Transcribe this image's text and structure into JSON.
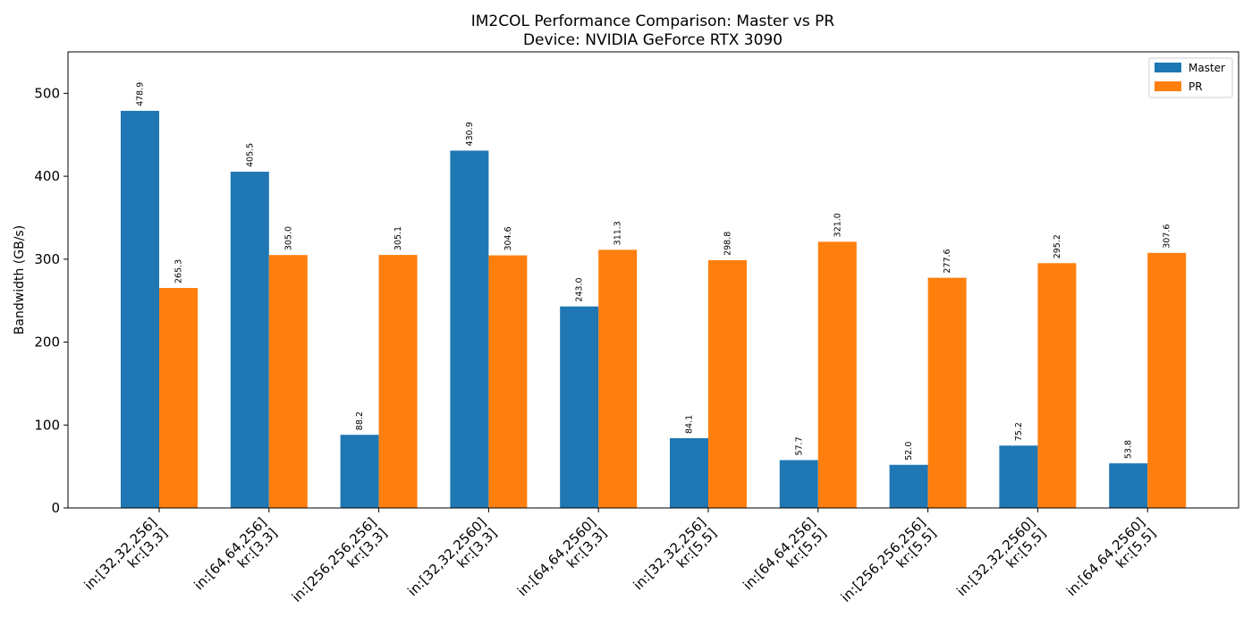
{
  "chart_data": {
    "type": "bar",
    "title": "IM2COL Performance Comparison: Master vs PR",
    "subtitle": "Device: NVIDIA GeForce RTX 3090",
    "xlabel": "",
    "ylabel": "Bandwidth (GB/s)",
    "ylim": [
      0,
      550
    ],
    "yticks": [
      0,
      100,
      200,
      300,
      400,
      500
    ],
    "grid": false,
    "legend_position": "top-right",
    "categories": [
      [
        "in:[32,32,256]",
        "kr:[3,3]"
      ],
      [
        "in:[64,64,256]",
        "kr:[3,3]"
      ],
      [
        "in:[256,256,256]",
        "kr:[3,3]"
      ],
      [
        "in:[32,32,2560]",
        "kr:[3,3]"
      ],
      [
        "in:[64,64,2560]",
        "kr:[3,3]"
      ],
      [
        "in:[32,32,256]",
        "kr:[5,5]"
      ],
      [
        "in:[64,64,256]",
        "kr:[5,5]"
      ],
      [
        "in:[256,256,256]",
        "kr:[5,5]"
      ],
      [
        "in:[32,32,2560]",
        "kr:[5,5]"
      ],
      [
        "in:[64,64,2560]",
        "kr:[5,5]"
      ]
    ],
    "series": [
      {
        "name": "Master",
        "color": "#1f77b4",
        "values": [
          478.9,
          405.5,
          88.2,
          430.9,
          243.0,
          84.1,
          57.7,
          52.0,
          75.2,
          53.8
        ],
        "labels": [
          "478.9",
          "405.5",
          "88.2",
          "430.9",
          "243.0",
          "84.1",
          "57.7",
          "52.0",
          "75.2",
          "53.8"
        ]
      },
      {
        "name": "PR",
        "color": "#ff7f0e",
        "values": [
          265.3,
          305.0,
          305.1,
          304.6,
          311.3,
          298.8,
          321.0,
          277.6,
          295.2,
          307.6
        ],
        "labels": [
          "265.3",
          "305.0",
          "305.1",
          "304.6",
          "311.3",
          "298.8",
          "321.0",
          "277.6",
          "295.2",
          "307.6"
        ]
      }
    ]
  }
}
